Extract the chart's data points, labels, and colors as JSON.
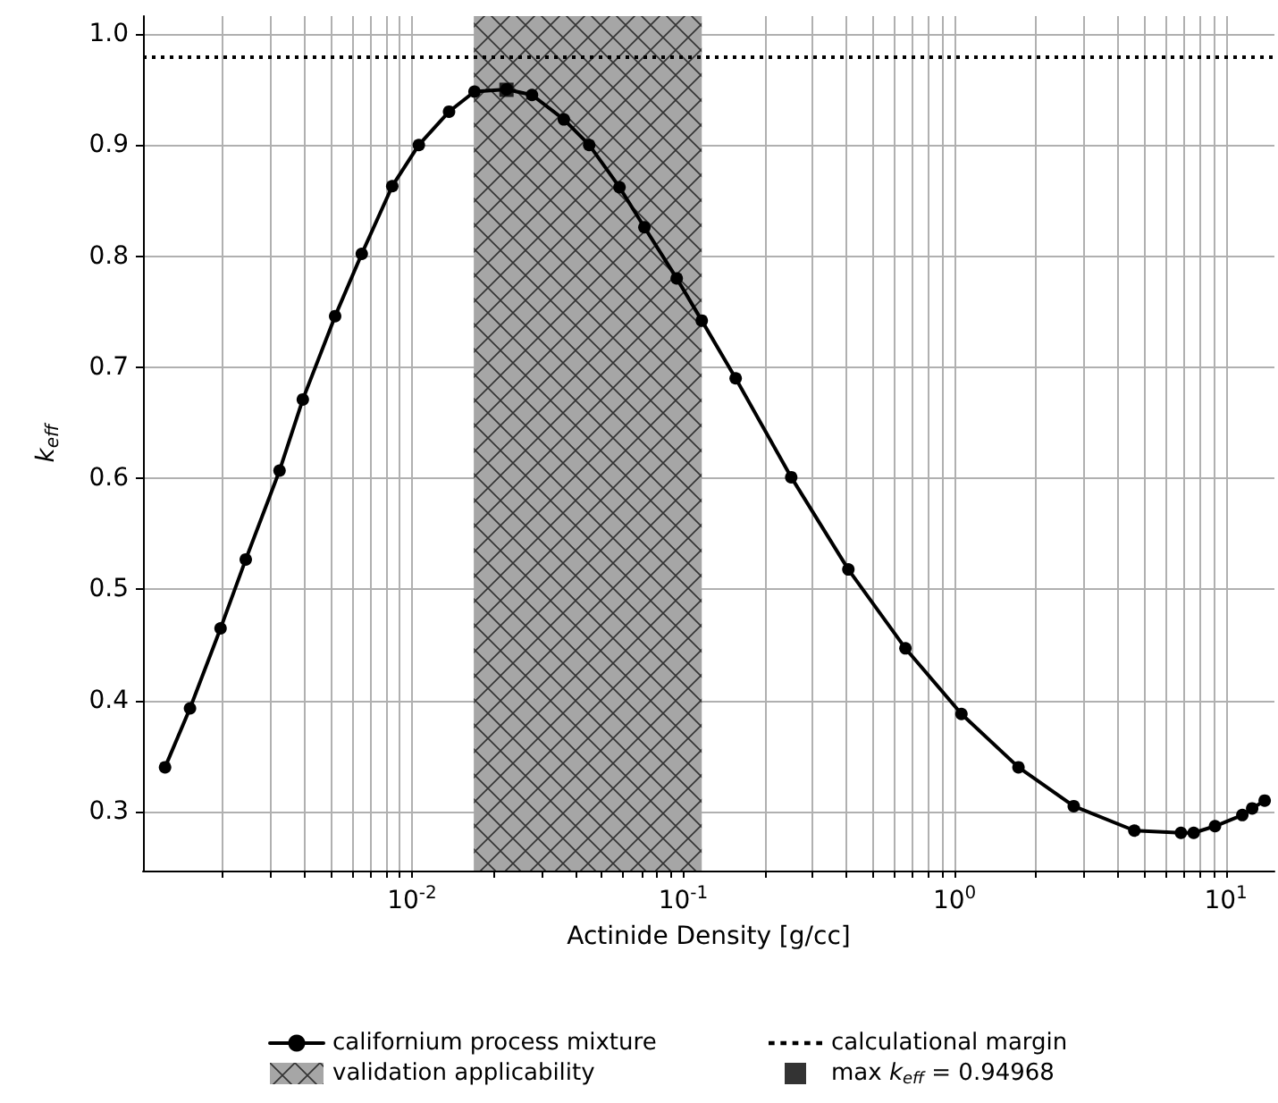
{
  "chart_data": {
    "type": "line",
    "xlabel": "Actinide Density [g/cc]",
    "ylabel": "k$_{eff}$",
    "x": [
      0.00123,
      0.00152,
      0.00197,
      0.00244,
      0.00325,
      0.00396,
      0.00521,
      0.00653,
      0.00846,
      0.0106,
      0.0137,
      0.017,
      0.0223,
      0.0277,
      0.0363,
      0.045,
      0.0582,
      0.0719,
      0.0946,
      0.117,
      0.156,
      0.25,
      0.406,
      0.659,
      1.06,
      1.72,
      2.75,
      4.6,
      6.83,
      7.61,
      9.12,
      11.5,
      12.5,
      13.9
    ],
    "series": [
      {
        "name": "californium process mixture",
        "color": "#000000",
        "values": [
          0.34,
          0.393,
          0.465,
          0.527,
          0.607,
          0.671,
          0.746,
          0.802,
          0.863,
          0.9,
          0.93,
          0.948,
          0.95,
          0.945,
          0.923,
          0.9,
          0.862,
          0.826,
          0.78,
          0.742,
          0.69,
          0.601,
          0.518,
          0.447,
          0.388,
          0.34,
          0.305,
          0.283,
          0.281,
          0.281,
          0.287,
          0.297,
          0.303,
          0.31
        ]
      },
      {
        "name": "max k$_{eff}$ = 0.94968",
        "type": "scatter",
        "marker": "square",
        "color": "#000000",
        "x": [
          0.0223
        ],
        "values": [
          0.94968
        ]
      }
    ],
    "ref_lines": [
      {
        "axis": "y",
        "value": 0.98,
        "label": "calculational margin",
        "color": "#000000",
        "line_style": "dotted"
      }
    ],
    "bands": [
      {
        "axis": "x",
        "from": 0.0169,
        "to": 0.117,
        "label": "validation applicability",
        "color": "#a6a6a6"
      }
    ],
    "log": "x",
    "xlim": [
      0.00102,
      15.1
    ],
    "xticks": [
      {
        "value": 0.002,
        "label": null
      },
      {
        "value": 0.003,
        "label": null
      },
      {
        "value": 0.004,
        "label": null
      },
      {
        "value": 0.005,
        "label": null
      },
      {
        "value": 0.006,
        "label": null
      },
      {
        "value": 0.007,
        "label": null
      },
      {
        "value": 0.008,
        "label": null
      },
      {
        "value": 0.009,
        "label": null
      },
      {
        "value": 0.01,
        "label": "10$^{-2}$"
      },
      {
        "value": 0.02,
        "label": null
      },
      {
        "value": 0.03,
        "label": null
      },
      {
        "value": 0.04,
        "label": null
      },
      {
        "value": 0.05,
        "label": null
      },
      {
        "value": 0.06,
        "label": null
      },
      {
        "value": 0.07,
        "label": null
      },
      {
        "value": 0.08,
        "label": null
      },
      {
        "value": 0.09,
        "label": null
      },
      {
        "value": 0.1,
        "label": "10$^{-1}$"
      },
      {
        "value": 0.2,
        "label": null
      },
      {
        "value": 0.3,
        "label": null
      },
      {
        "value": 0.4,
        "label": null
      },
      {
        "value": 0.5,
        "label": null
      },
      {
        "value": 0.6,
        "label": null
      },
      {
        "value": 0.7,
        "label": null
      },
      {
        "value": 0.8,
        "label": null
      },
      {
        "value": 0.9,
        "label": null
      },
      {
        "value": 1,
        "label": "10$^{0}$"
      },
      {
        "value": 2,
        "label": null
      },
      {
        "value": 3,
        "label": null
      },
      {
        "value": 4,
        "label": null
      },
      {
        "value": 5,
        "label": null
      },
      {
        "value": 6,
        "label": null
      },
      {
        "value": 7,
        "label": null
      },
      {
        "value": 8,
        "label": null
      },
      {
        "value": 9,
        "label": null
      },
      {
        "value": 10,
        "label": "10$^{1}$"
      }
    ],
    "ylim": [
      0.247,
      1.016
    ],
    "yticks": [
      0.3,
      0.4,
      0.5,
      0.6,
      0.7,
      0.8,
      0.9,
      {
        "value": 1,
        "label": "1.0"
      }
    ],
    "grid": true,
    "legend": "bottom",
    "marker": "circle",
    "line_style": "solid"
  }
}
